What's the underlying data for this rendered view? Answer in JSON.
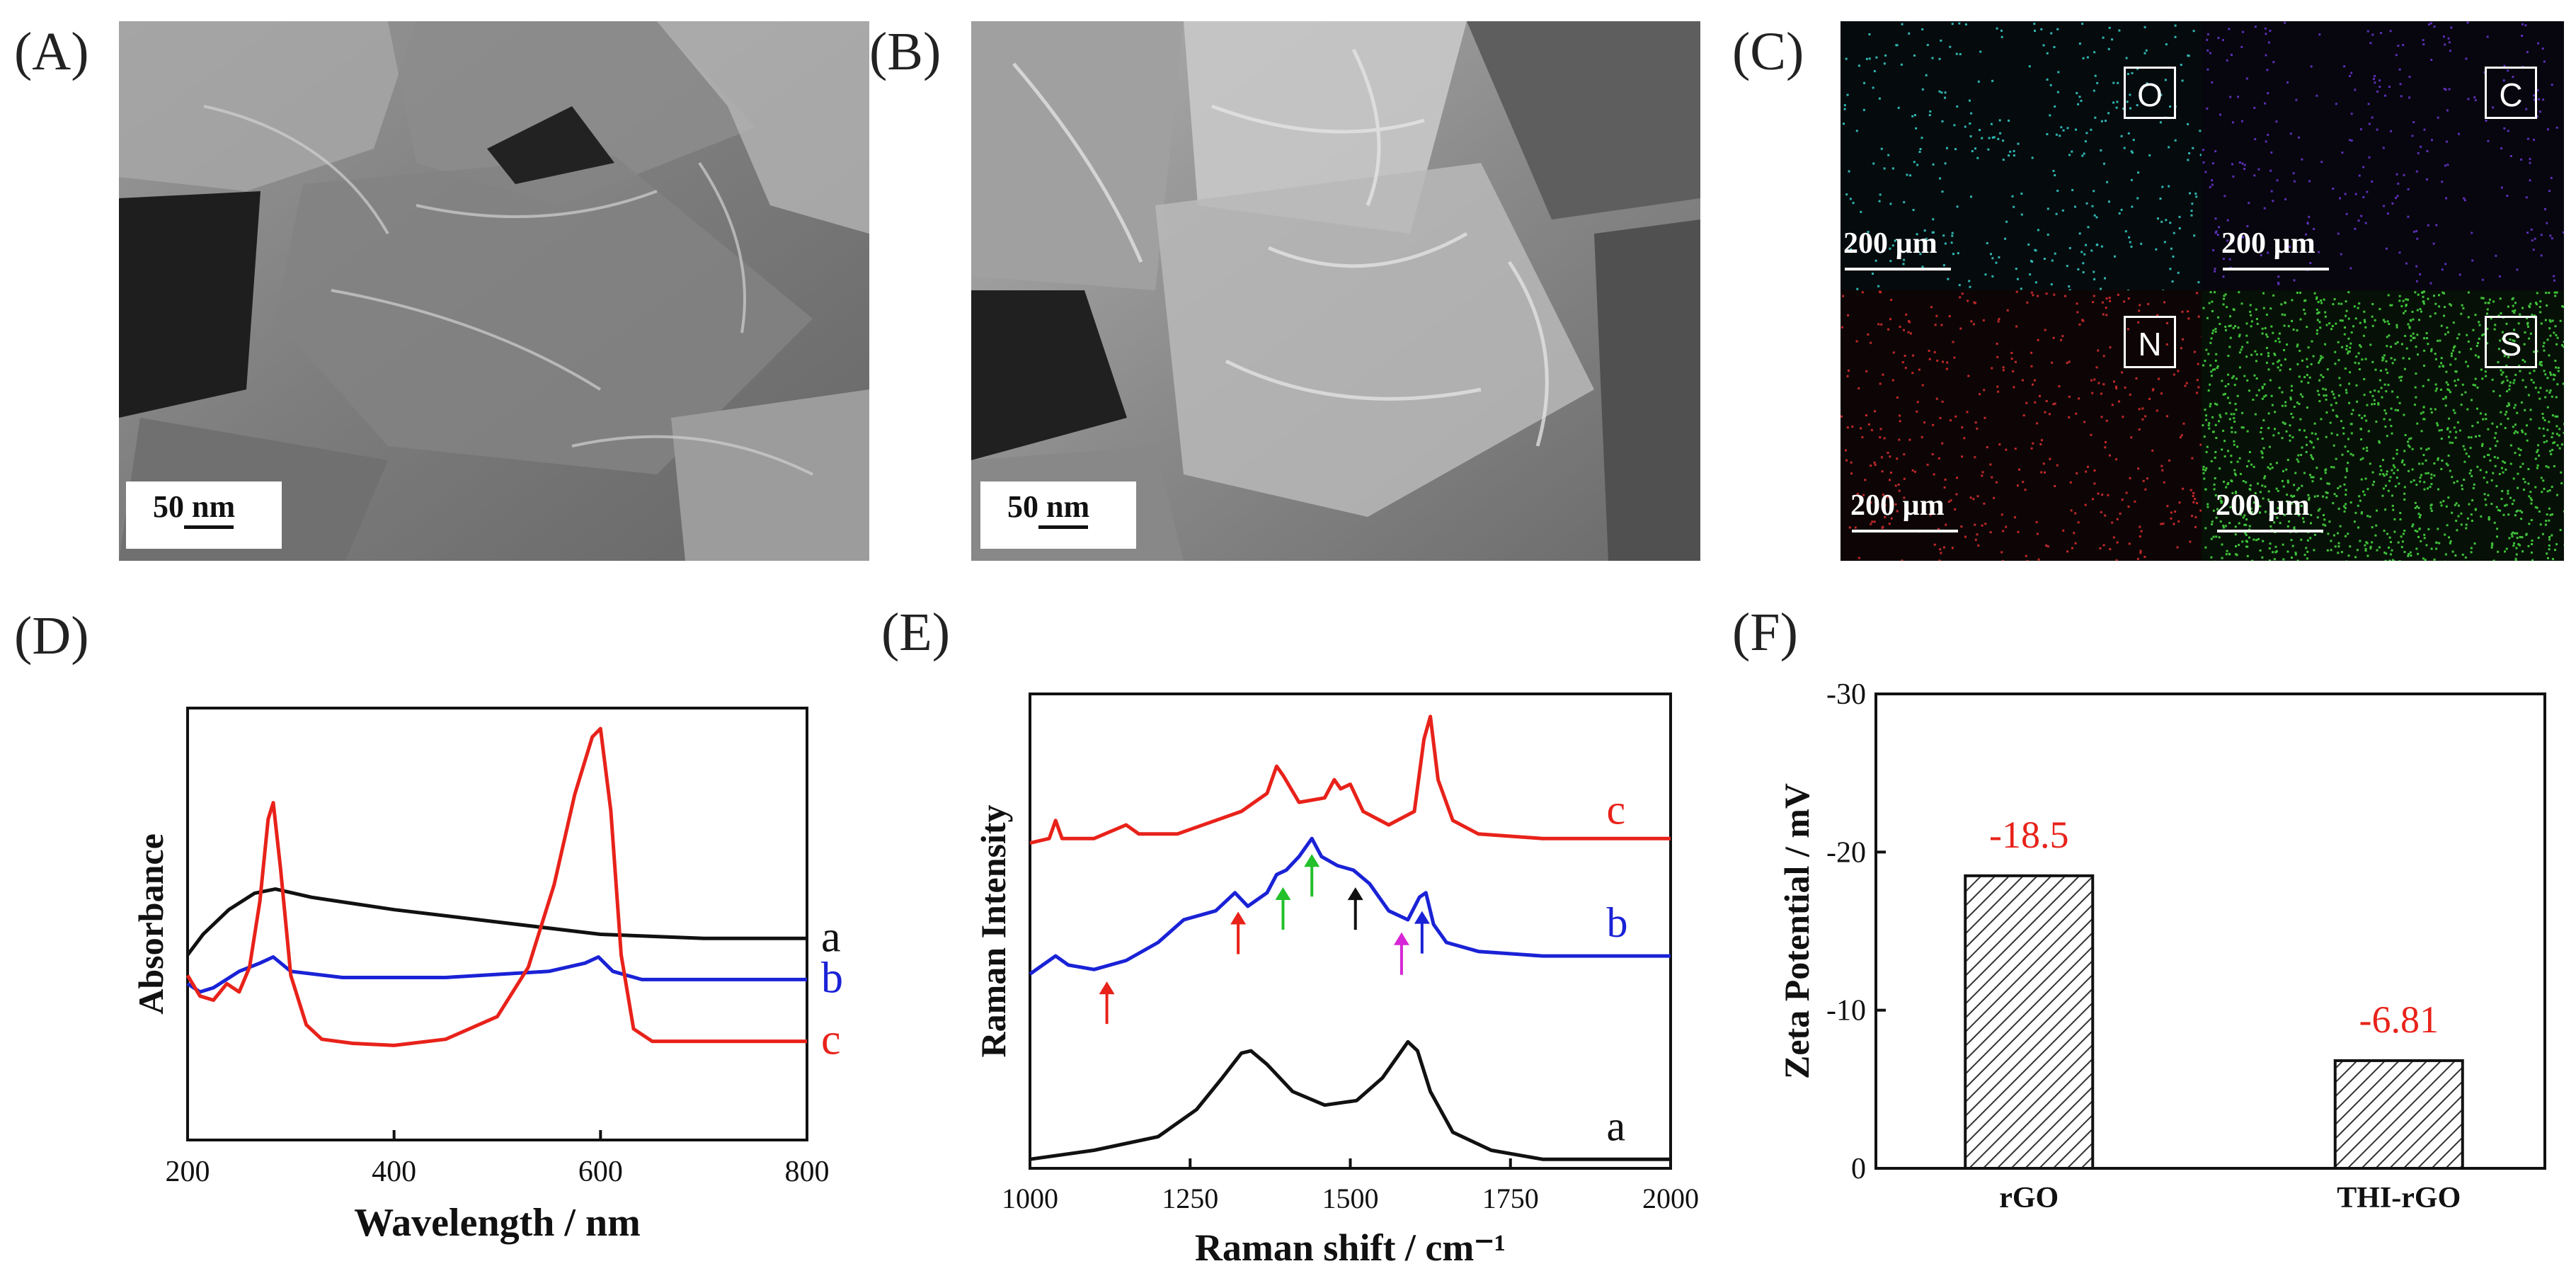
{
  "panels": {
    "a": {
      "label": "(A)",
      "scale": "50 nm"
    },
    "b": {
      "label": "(B)",
      "scale": "50 nm"
    },
    "c": {
      "label": "(C)",
      "maps": [
        {
          "element": "O",
          "scale": "200 µm",
          "color": "#2fb5b0"
        },
        {
          "element": "C",
          "scale": "200 µm",
          "color": "#5a2fb5"
        },
        {
          "element": "N",
          "scale": "200 µm",
          "color": "#c0282a"
        },
        {
          "element": "S",
          "scale": "200 µm",
          "color": "#3fc23a"
        }
      ]
    },
    "d": {
      "label": "(D)"
    },
    "e": {
      "label": "(E)"
    },
    "f": {
      "label": "(F)"
    }
  },
  "chart_data": [
    {
      "id": "D",
      "type": "line",
      "xlabel": "Wavelength / nm",
      "ylabel": "Absorbance",
      "xlim": [
        200,
        800
      ],
      "xticks": [
        200,
        400,
        600,
        800
      ],
      "series": [
        {
          "name": "a",
          "color": "#111111",
          "points": [
            [
              200,
              0.45
            ],
            [
              215,
              0.5
            ],
            [
              240,
              0.56
            ],
            [
              265,
              0.6
            ],
            [
              285,
              0.61
            ],
            [
              320,
              0.59
            ],
            [
              400,
              0.56
            ],
            [
              500,
              0.53
            ],
            [
              600,
              0.5
            ],
            [
              700,
              0.49
            ],
            [
              800,
              0.49
            ]
          ]
        },
        {
          "name": "b",
          "color": "#1a22d6",
          "points": [
            [
              200,
              0.38
            ],
            [
              212,
              0.36
            ],
            [
              225,
              0.37
            ],
            [
              250,
              0.41
            ],
            [
              270,
              0.43
            ],
            [
              283,
              0.445
            ],
            [
              300,
              0.41
            ],
            [
              350,
              0.395
            ],
            [
              450,
              0.395
            ],
            [
              550,
              0.41
            ],
            [
              585,
              0.43
            ],
            [
              598,
              0.445
            ],
            [
              612,
              0.41
            ],
            [
              640,
              0.39
            ],
            [
              700,
              0.39
            ],
            [
              800,
              0.39
            ]
          ]
        },
        {
          "name": "c",
          "color": "#e8221a",
          "points": [
            [
              200,
              0.4
            ],
            [
              212,
              0.35
            ],
            [
              225,
              0.34
            ],
            [
              238,
              0.38
            ],
            [
              250,
              0.36
            ],
            [
              260,
              0.42
            ],
            [
              270,
              0.58
            ],
            [
              278,
              0.78
            ],
            [
              283,
              0.82
            ],
            [
              290,
              0.66
            ],
            [
              300,
              0.4
            ],
            [
              315,
              0.28
            ],
            [
              330,
              0.245
            ],
            [
              360,
              0.235
            ],
            [
              400,
              0.23
            ],
            [
              450,
              0.245
            ],
            [
              500,
              0.3
            ],
            [
              530,
              0.42
            ],
            [
              555,
              0.62
            ],
            [
              575,
              0.84
            ],
            [
              592,
              0.98
            ],
            [
              600,
              1.0
            ],
            [
              610,
              0.8
            ],
            [
              620,
              0.45
            ],
            [
              632,
              0.27
            ],
            [
              650,
              0.24
            ],
            [
              700,
              0.24
            ],
            [
              800,
              0.24
            ]
          ]
        }
      ],
      "ylim": [
        0,
        1.05
      ]
    },
    {
      "id": "E",
      "type": "line",
      "xlabel": "Raman shift / cm⁻¹",
      "ylabel": "Raman Intensity",
      "xlim": [
        1000,
        2000
      ],
      "xticks": [
        1000,
        1250,
        1500,
        1750,
        2000
      ],
      "series": [
        {
          "name": "a",
          "color": "#111111",
          "points": [
            [
              1000,
              0.02
            ],
            [
              1100,
              0.04
            ],
            [
              1200,
              0.07
            ],
            [
              1260,
              0.13
            ],
            [
              1300,
              0.2
            ],
            [
              1330,
              0.255
            ],
            [
              1345,
              0.26
            ],
            [
              1370,
              0.23
            ],
            [
              1410,
              0.17
            ],
            [
              1460,
              0.14
            ],
            [
              1510,
              0.15
            ],
            [
              1550,
              0.2
            ],
            [
              1575,
              0.25
            ],
            [
              1590,
              0.28
            ],
            [
              1605,
              0.26
            ],
            [
              1625,
              0.17
            ],
            [
              1660,
              0.08
            ],
            [
              1720,
              0.04
            ],
            [
              1800,
              0.02
            ],
            [
              2000,
              0.02
            ]
          ]
        },
        {
          "name": "b",
          "color": "#1a22d6",
          "points": [
            [
              1000,
              0.43
            ],
            [
              1040,
              0.47
            ],
            [
              1060,
              0.45
            ],
            [
              1100,
              0.44
            ],
            [
              1150,
              0.46
            ],
            [
              1200,
              0.5
            ],
            [
              1240,
              0.55
            ],
            [
              1290,
              0.57
            ],
            [
              1320,
              0.61
            ],
            [
              1340,
              0.58
            ],
            [
              1370,
              0.61
            ],
            [
              1385,
              0.65
            ],
            [
              1400,
              0.66
            ],
            [
              1420,
              0.69
            ],
            [
              1440,
              0.73
            ],
            [
              1455,
              0.69
            ],
            [
              1480,
              0.67
            ],
            [
              1505,
              0.66
            ],
            [
              1530,
              0.63
            ],
            [
              1560,
              0.57
            ],
            [
              1590,
              0.55
            ],
            [
              1608,
              0.6
            ],
            [
              1618,
              0.61
            ],
            [
              1630,
              0.54
            ],
            [
              1650,
              0.5
            ],
            [
              1700,
              0.48
            ],
            [
              1800,
              0.47
            ],
            [
              2000,
              0.47
            ]
          ]
        },
        {
          "name": "c",
          "color": "#e8221a",
          "points": [
            [
              1000,
              0.72
            ],
            [
              1030,
              0.73
            ],
            [
              1040,
              0.77
            ],
            [
              1050,
              0.73
            ],
            [
              1100,
              0.73
            ],
            [
              1150,
              0.76
            ],
            [
              1170,
              0.74
            ],
            [
              1230,
              0.74
            ],
            [
              1290,
              0.77
            ],
            [
              1330,
              0.79
            ],
            [
              1370,
              0.83
            ],
            [
              1385,
              0.89
            ],
            [
              1395,
              0.87
            ],
            [
              1420,
              0.81
            ],
            [
              1460,
              0.82
            ],
            [
              1475,
              0.86
            ],
            [
              1485,
              0.84
            ],
            [
              1500,
              0.85
            ],
            [
              1520,
              0.79
            ],
            [
              1560,
              0.76
            ],
            [
              1600,
              0.79
            ],
            [
              1615,
              0.95
            ],
            [
              1625,
              1.0
            ],
            [
              1637,
              0.86
            ],
            [
              1660,
              0.77
            ],
            [
              1700,
              0.74
            ],
            [
              1800,
              0.73
            ],
            [
              2000,
              0.73
            ]
          ]
        }
      ],
      "arrows": [
        {
          "x": 1120,
          "color": "#e8221a"
        },
        {
          "x": 1325,
          "color": "#e8221a"
        },
        {
          "x": 1395,
          "color": "#22c02a"
        },
        {
          "x": 1440,
          "color": "#22c02a"
        },
        {
          "x": 1508,
          "color": "#111111"
        },
        {
          "x": 1580,
          "color": "#d626d6"
        },
        {
          "x": 1612,
          "color": "#1a22d6"
        }
      ],
      "ylim": [
        0,
        1.05
      ]
    },
    {
      "id": "F",
      "type": "bar",
      "xlabel": "",
      "ylabel": "Zeta Potential / mV",
      "ylim": [
        0,
        -30
      ],
      "yticks": [
        0,
        -10,
        -20,
        -30
      ],
      "categories": [
        "rGO",
        "THI-rGO"
      ],
      "values": [
        -18.5,
        -6.81
      ],
      "value_labels": [
        "-18.5",
        "-6.81"
      ]
    }
  ]
}
